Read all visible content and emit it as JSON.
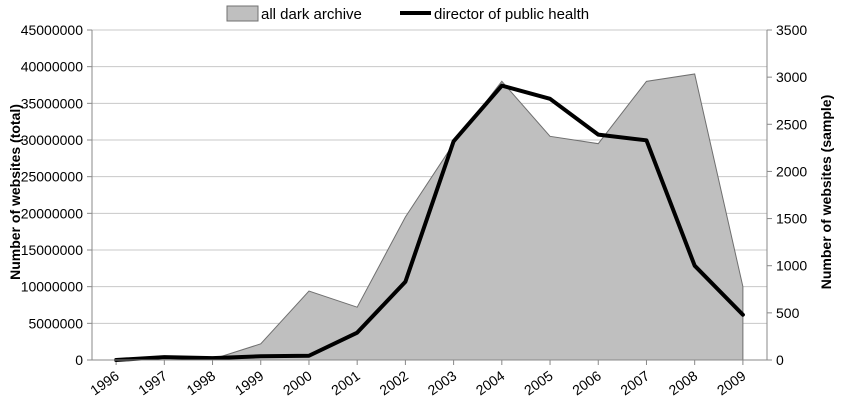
{
  "chart_data": {
    "type": "area",
    "title": "",
    "x": [
      "1996",
      "1997",
      "1998",
      "1999",
      "2000",
      "2001",
      "2002",
      "2003",
      "2004",
      "2005",
      "2006",
      "2007",
      "2008",
      "2009"
    ],
    "ylabel": "Number of websites (total)",
    "y2label": "Number of websites (sample)",
    "ylim": [
      0,
      45000000
    ],
    "y2lim": [
      0,
      3500
    ],
    "yticks": [
      "0",
      "5000000",
      "10000000",
      "15000000",
      "20000000",
      "25000000",
      "30000000",
      "35000000",
      "40000000",
      "45000000"
    ],
    "y2ticks": [
      "0",
      "500",
      "1000",
      "1500",
      "2000",
      "2500",
      "3000",
      "3500"
    ],
    "grid": true,
    "legend_position": "top",
    "series": [
      {
        "name": "all dark archive",
        "type": "area",
        "axis": "left",
        "color": "#bfbfbf",
        "values": [
          0,
          0,
          100000,
          2200000,
          9400000,
          7200000,
          19500000,
          29500000,
          38000000,
          30500000,
          29500000,
          38000000,
          39000000,
          10000000
        ]
      },
      {
        "name": "director of public health",
        "type": "line",
        "axis": "right",
        "color": "#000000",
        "values": [
          0,
          30,
          20,
          40,
          45,
          290,
          830,
          2320,
          2910,
          2770,
          2390,
          2330,
          1000,
          480
        ]
      }
    ]
  }
}
